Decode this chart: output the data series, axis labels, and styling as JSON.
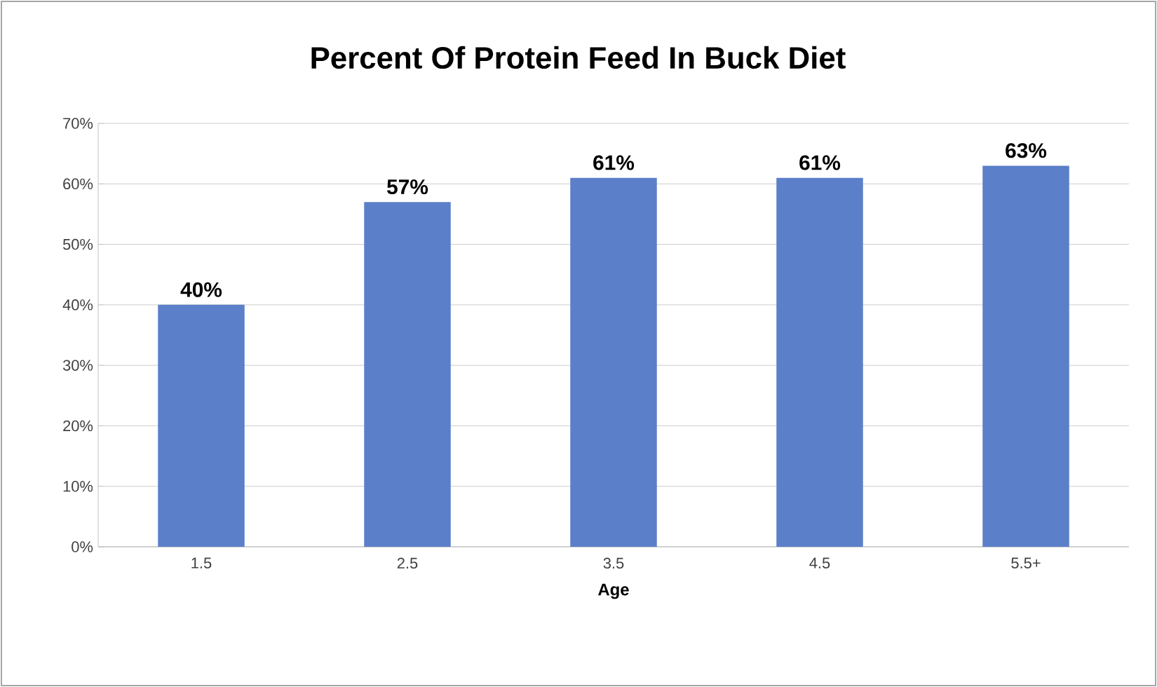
{
  "chart_data": {
    "type": "bar",
    "title": "Percent Of Protein Feed In Buck Diet",
    "xlabel": "Age",
    "categories": [
      "1.5",
      "2.5",
      "3.5",
      "4.5",
      "5.5+"
    ],
    "values": [
      40,
      57,
      61,
      61,
      63
    ],
    "value_labels": [
      "40%",
      "57%",
      "61%",
      "61%",
      "63%"
    ],
    "color": "#5b7fc9",
    "ylim": [
      0,
      70
    ],
    "yticks": [
      {
        "value": 0,
        "label": "0%"
      },
      {
        "value": 10,
        "label": "10%"
      },
      {
        "value": 20,
        "label": "20%"
      },
      {
        "value": 30,
        "label": "30%"
      },
      {
        "value": 40,
        "label": "40%"
      },
      {
        "value": 50,
        "label": "50%"
      },
      {
        "value": 60,
        "label": "60%"
      },
      {
        "value": 70,
        "label": "70%"
      }
    ],
    "grid": "y"
  }
}
